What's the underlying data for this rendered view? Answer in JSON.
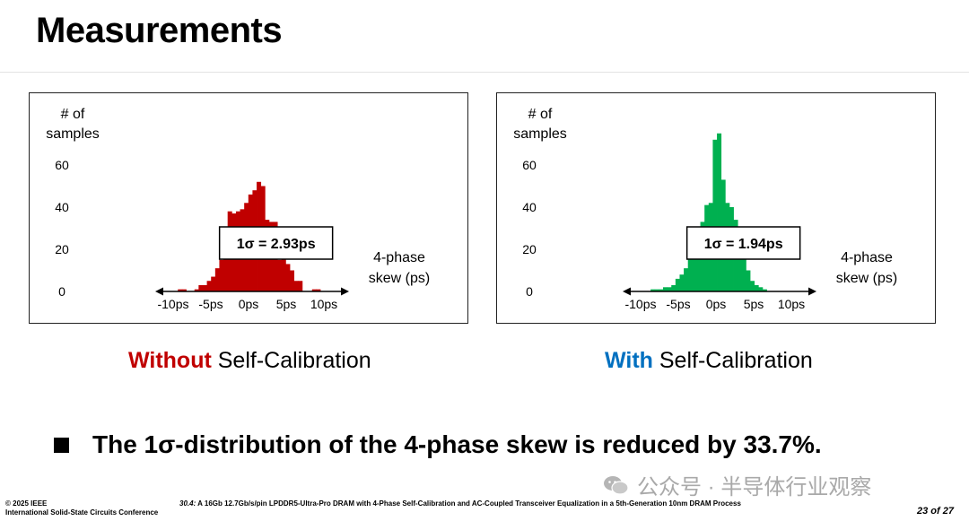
{
  "page": {
    "title": "Measurements"
  },
  "colors": {
    "without_bar": "#c00000",
    "with_bar": "#00b050",
    "without_label": "#c00000",
    "with_label": "#0070c0"
  },
  "chart_data": [
    {
      "type": "bar",
      "id": "without-calibration",
      "ylabel": "# of samples",
      "xlabel": "4-phase skew (ps)",
      "annotation": "1σ = 2.93ps",
      "yticks": [
        "0",
        "20",
        "40",
        "60"
      ],
      "xticks": [
        "-10ps",
        "-5ps",
        "0ps",
        "5ps",
        "10ps"
      ],
      "xlim": [
        -10,
        10
      ],
      "ylim": [
        0,
        60
      ],
      "bin_width": 0.55,
      "x": [
        -9.1,
        -8.55,
        -6.9,
        -6.35,
        -5.8,
        -5.25,
        -4.7,
        -4.15,
        -3.6,
        -3.05,
        -2.5,
        -1.95,
        -1.4,
        -0.85,
        -0.3,
        0.25,
        0.8,
        1.35,
        1.9,
        2.45,
        3.0,
        3.55,
        4.1,
        4.65,
        5.2,
        5.75,
        6.3,
        6.85,
        8.7,
        9.25
      ],
      "values": [
        1,
        1,
        1,
        3,
        3,
        5,
        7,
        11,
        15,
        25,
        38,
        37,
        38,
        39,
        42,
        46,
        48,
        52,
        50,
        34,
        33,
        33,
        15,
        17,
        13,
        10,
        5,
        5,
        1,
        1
      ]
    },
    {
      "type": "bar",
      "id": "with-calibration",
      "ylabel": "# of samples",
      "xlabel": "4-phase skew (ps)",
      "annotation": "1σ = 1.94ps",
      "yticks": [
        "0",
        "20",
        "40",
        "60"
      ],
      "xticks": [
        "-10ps",
        "-5ps",
        "0ps",
        "5ps",
        "10ps"
      ],
      "xlim": [
        -10,
        10
      ],
      "ylim": [
        0,
        60
      ],
      "bin_width": 0.55,
      "x": [
        -8.4,
        -7.85,
        -7.3,
        -6.75,
        -6.2,
        -5.65,
        -5.1,
        -4.55,
        -4.0,
        -3.45,
        -2.9,
        -2.35,
        -1.8,
        -1.25,
        -0.7,
        -0.15,
        0.4,
        0.95,
        1.5,
        2.05,
        2.6,
        3.15,
        3.7,
        4.25,
        4.8,
        5.35,
        5.9,
        6.45
      ],
      "values": [
        1,
        1,
        1,
        2,
        2,
        3,
        6,
        8,
        11,
        17,
        21,
        23,
        33,
        41,
        42,
        72,
        75,
        53,
        42,
        40,
        34,
        25,
        17,
        10,
        5,
        3,
        2,
        1
      ]
    }
  ],
  "captions": {
    "left_highlight": "Without",
    "left_rest": " Self-Calibration",
    "right_highlight": "With",
    "right_rest": " Self-Calibration"
  },
  "bullet": "The 1σ-distribution of the 4-phase skew is reduced by 33.7%.",
  "watermark": "公众号 · 半导体行业观察",
  "footer": {
    "copyright": "© 2025 IEEE",
    "conference": "International Solid-State Circuits Conference",
    "paper_num": "30.4:",
    "paper_title": " A 16Gb 12.7Gb/s/pin LPDDR5-Ultra-Pro DRAM with 4-Phase Self-Calibration and AC-Coupled Transceiver Equalization in a 5th-Generation 10nm DRAM Process",
    "page": "23 of 27"
  }
}
